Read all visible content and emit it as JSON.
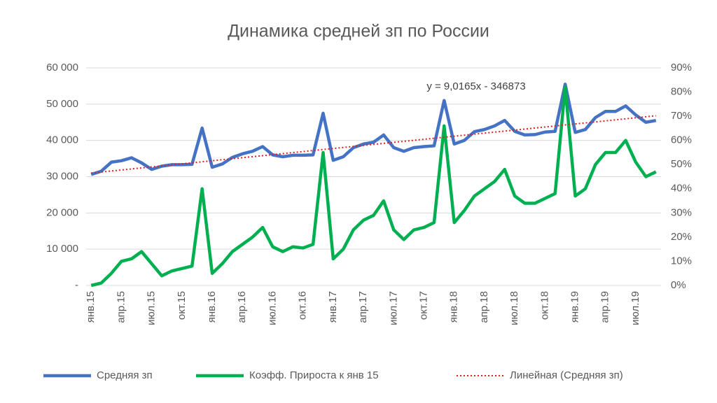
{
  "chart_data": {
    "type": "line",
    "title": "Динамика средней зп по России",
    "categories": [
      "янв.15",
      null,
      null,
      "апр.15",
      null,
      null,
      "июл.15",
      null,
      null,
      "окт.15",
      null,
      null,
      "янв.16",
      null,
      null,
      "апр.16",
      null,
      null,
      "июл.16",
      null,
      null,
      "окт.16",
      null,
      null,
      "янв.17",
      null,
      null,
      "апр.17",
      null,
      null,
      "июл.17",
      null,
      null,
      "окт.17",
      null,
      null,
      "янв.18",
      null,
      null,
      "апр.18",
      null,
      null,
      "июл.18",
      null,
      null,
      "окт.18",
      null,
      null,
      "янв.19",
      null,
      null,
      "апр.19",
      null,
      null,
      "июл.19",
      null,
      null
    ],
    "series": [
      {
        "name": "Средняя зп",
        "color": "#4472c4",
        "values": [
          30600,
          31500,
          34000,
          34400,
          35200,
          33800,
          32000,
          32900,
          33300,
          33300,
          33400,
          43400,
          32600,
          33500,
          35300,
          36300,
          37000,
          38300,
          36000,
          35500,
          35900,
          35900,
          36000,
          47500,
          34500,
          35500,
          38000,
          39000,
          39500,
          41500,
          38000,
          37000,
          38000,
          38300,
          38500,
          51000,
          39000,
          40000,
          42400,
          43000,
          44000,
          45500,
          42500,
          41500,
          41600,
          42300,
          42500,
          55500,
          42200,
          43000,
          46300,
          48000,
          48000,
          49500,
          47000,
          45000,
          45500
        ]
      },
      {
        "name": "Коэфф. Прироста к янв 15",
        "color": "#00b050",
        "axis": "y2",
        "values": [
          0,
          1,
          5,
          10,
          11,
          14,
          9,
          4,
          6,
          7,
          8,
          40,
          5,
          9,
          14,
          17,
          20,
          24,
          16,
          14,
          16,
          15.5,
          17,
          55,
          11,
          15,
          23,
          27,
          29,
          35,
          23,
          19,
          23,
          24,
          26,
          66,
          26,
          31,
          37,
          40,
          43,
          48,
          37,
          34,
          34,
          36,
          38,
          82,
          37,
          40,
          50,
          55,
          55,
          60,
          51,
          45,
          47
        ]
      }
    ],
    "trendline": {
      "name": "Линейная (Средняя зп)",
      "color": "#e02020",
      "start": 31000,
      "end": 46800
    },
    "annotation": "y = 9,0165x - 346873",
    "ylim": [
      0,
      60000
    ],
    "yticks": [
      {
        "value": 0,
        "label": "-"
      },
      {
        "value": 10000,
        "label": "10 000"
      },
      {
        "value": 20000,
        "label": "20 000"
      },
      {
        "value": 30000,
        "label": "30 000"
      },
      {
        "value": 40000,
        "label": "40 000"
      },
      {
        "value": 50000,
        "label": "50 000"
      },
      {
        "value": 60000,
        "label": "60 000"
      }
    ],
    "y2lim": [
      0,
      90
    ],
    "y2ticks": [
      {
        "value": 0,
        "label": "0%"
      },
      {
        "value": 10,
        "label": "10%"
      },
      {
        "value": 20,
        "label": "20%"
      },
      {
        "value": 30,
        "label": "30%"
      },
      {
        "value": 40,
        "label": "40%"
      },
      {
        "value": 50,
        "label": "50%"
      },
      {
        "value": 60,
        "label": "60%"
      },
      {
        "value": 70,
        "label": "70%"
      },
      {
        "value": 80,
        "label": "80%"
      },
      {
        "value": 90,
        "label": "90%"
      }
    ],
    "grid": true
  }
}
